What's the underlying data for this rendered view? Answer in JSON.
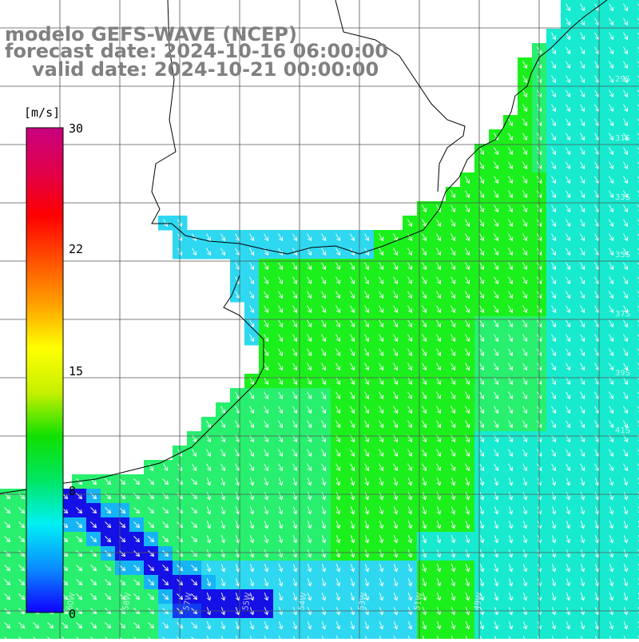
{
  "title": {
    "model": "modelo GEFS-WAVE (NCEP)",
    "forecast": "forecast date: 2024-10-16 06:00:00",
    "valid": "valid date: 2024-10-21 00:00:00"
  },
  "colorbar": {
    "unit": "[m/s]",
    "ticks": [
      "30",
      "22",
      "15",
      "8",
      "0"
    ],
    "colors": [
      "#1000ff",
      "#0a8cff",
      "#00f0f5",
      "#00e664",
      "#10e000",
      "#c8f000",
      "#ffff00",
      "#ffa000",
      "#ff5000",
      "#ff0000",
      "#e0004a",
      "#c80080"
    ]
  },
  "map": {
    "variable": "wind speed and direction",
    "ocean_colors": {
      "green": "#1cf01c",
      "light_green": "#28ef6e",
      "cyan": "#17eacf",
      "sky": "#2ed8f0",
      "blue": "#16b4f5",
      "deep_blue": "#0f3cf0",
      "navy": "#1410e6"
    },
    "grid_labels": {
      "lat": [
        "29S",
        "31S",
        "33S",
        "35S",
        "37S",
        "39S",
        "41S"
      ],
      "lon": [
        "60W",
        "58W",
        "57W",
        "55W",
        "54W",
        "53W",
        "51W",
        "49W"
      ]
    }
  }
}
